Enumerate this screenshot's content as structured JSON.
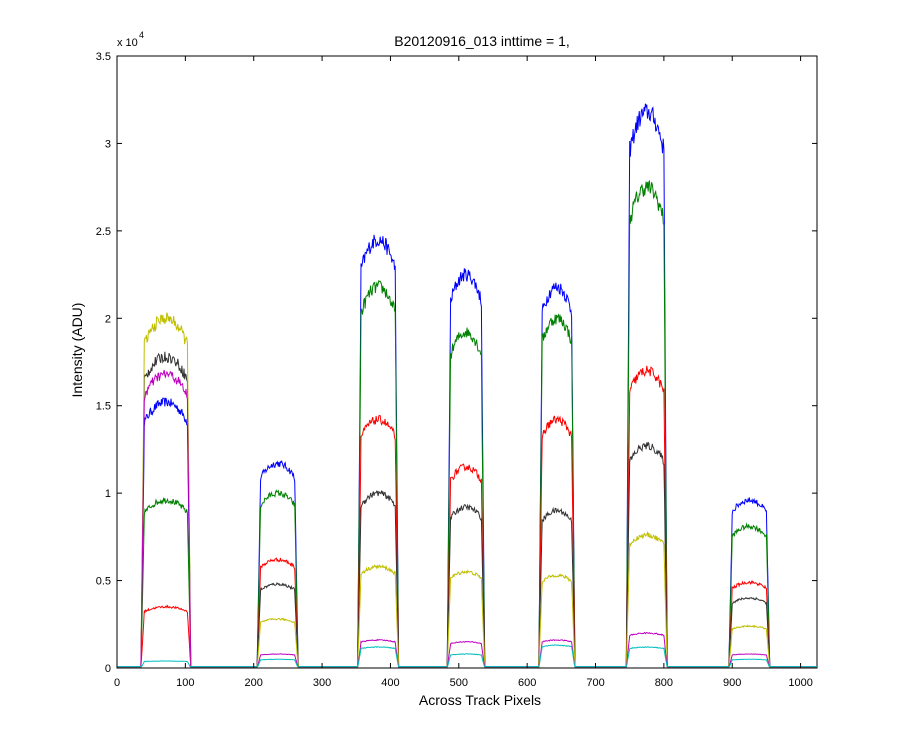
{
  "chart_data": {
    "type": "line",
    "title": "B20120916_013 inttime = 1,",
    "xlabel": "Across Track Pixels",
    "ylabel": "Intensity (ADU)",
    "y_exponent_label": "x 10",
    "y_exponent_power": "4",
    "xlim": [
      0,
      1024
    ],
    "ylim": [
      0,
      3.5
    ],
    "x_ticks": [
      0,
      100,
      200,
      300,
      400,
      500,
      600,
      700,
      800,
      900,
      1000
    ],
    "y_ticks": [
      0,
      0.5,
      1,
      1.5,
      2,
      2.5,
      3,
      3.5
    ],
    "x_tick_labels": [
      "0",
      "100",
      "200",
      "300",
      "400",
      "500",
      "600",
      "700",
      "800",
      "900",
      "1000"
    ],
    "y_tick_labels": [
      "0",
      "0.5",
      "1",
      "1.5",
      "2",
      "2.5",
      "3",
      "3.5"
    ],
    "grid": false,
    "legend": "none",
    "blocks": [
      {
        "x_start": 35,
        "x_end": 108
      },
      {
        "x_start": 205,
        "x_end": 265
      },
      {
        "x_start": 352,
        "x_end": 412
      },
      {
        "x_start": 483,
        "x_end": 538
      },
      {
        "x_start": 617,
        "x_end": 670
      },
      {
        "x_start": 745,
        "x_end": 805
      },
      {
        "x_start": 895,
        "x_end": 955
      }
    ],
    "series": [
      {
        "color": "#0000ff",
        "block_values": [
          1.52,
          1.17,
          2.45,
          2.25,
          2.18,
          3.18,
          0.96
        ]
      },
      {
        "color": "#008000",
        "block_values": [
          0.96,
          1.0,
          2.18,
          1.92,
          2.0,
          2.75,
          0.81
        ]
      },
      {
        "color": "#ff0000",
        "block_values": [
          0.35,
          0.62,
          1.42,
          1.15,
          1.42,
          1.7,
          0.49
        ]
      },
      {
        "color": "#333333",
        "block_values": [
          1.78,
          0.48,
          1.0,
          0.92,
          0.9,
          1.27,
          0.4
        ]
      },
      {
        "color": "#bfbf00",
        "block_values": [
          2.0,
          0.28,
          0.58,
          0.55,
          0.53,
          0.76,
          0.24
        ]
      },
      {
        "color": "#bf00bf",
        "block_values": [
          1.68,
          0.08,
          0.16,
          0.15,
          0.16,
          0.2,
          0.08
        ]
      },
      {
        "color": "#00bfbf",
        "block_values": [
          0.04,
          0.05,
          0.12,
          0.08,
          0.13,
          0.12,
          0.05
        ]
      }
    ]
  }
}
